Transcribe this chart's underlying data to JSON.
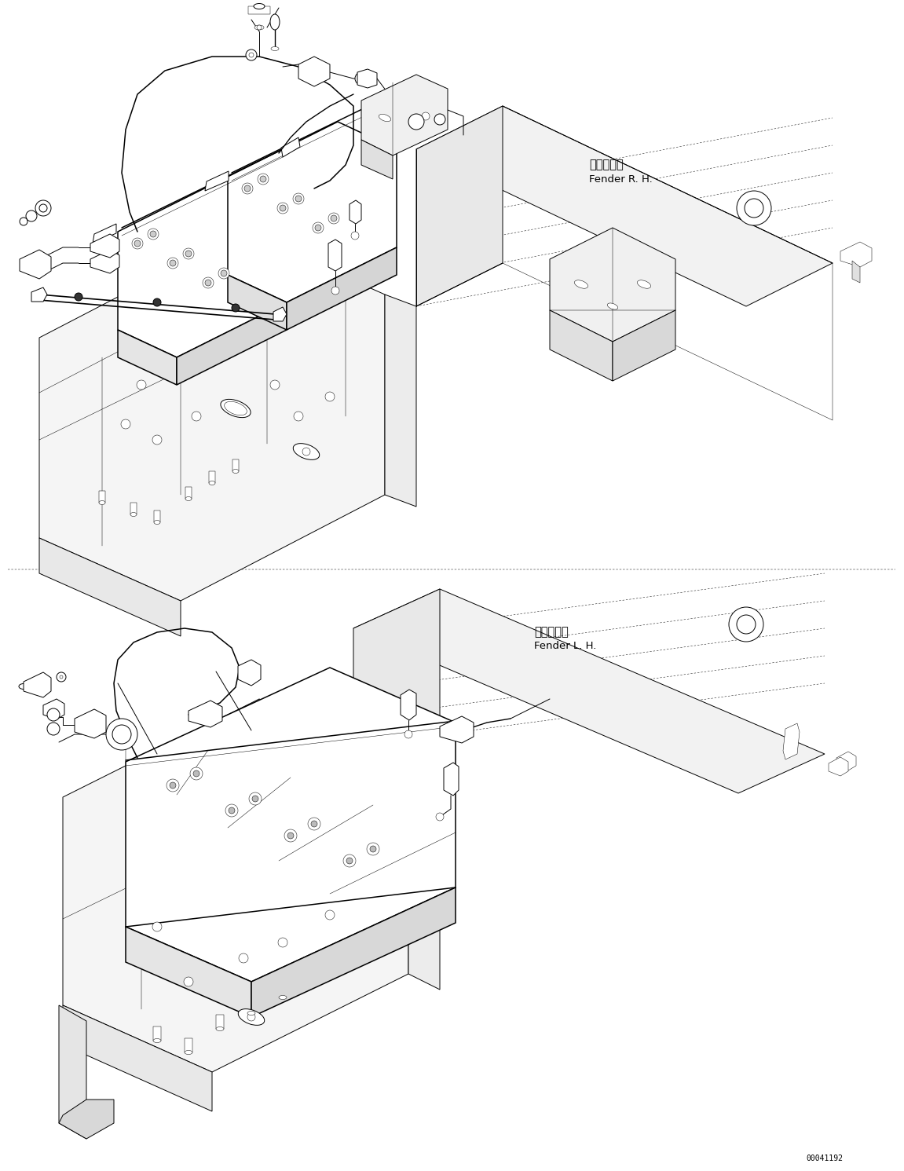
{
  "fig_width": 11.51,
  "fig_height": 14.91,
  "dpi": 100,
  "bg_color": "#ffffff",
  "line_color": "#000000",
  "lw": 0.7,
  "lw_thin": 0.35,
  "lw_thick": 1.1,
  "label_rh_jp": "フェンダ右",
  "label_rh_en": "Fender R. H.",
  "label_lh_jp": "フェンダ左",
  "label_lh_en": "Fender L. H.",
  "doc_number": "00041192",
  "fs_label": 9.5,
  "fs_small": 7.5,
  "fs_mono": 7
}
